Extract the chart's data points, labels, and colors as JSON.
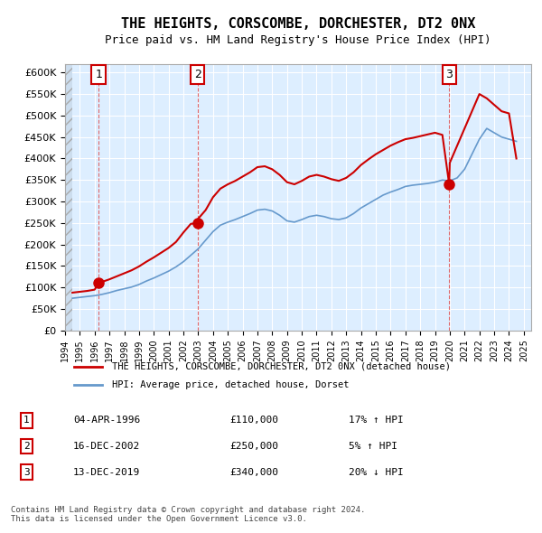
{
  "title": "THE HEIGHTS, CORSCOMBE, DORCHESTER, DT2 0NX",
  "subtitle": "Price paid vs. HM Land Registry's House Price Index (HPI)",
  "ylabel": "",
  "ylim": [
    0,
    620000
  ],
  "yticks": [
    0,
    50000,
    100000,
    150000,
    200000,
    250000,
    300000,
    350000,
    400000,
    450000,
    500000,
    550000,
    600000
  ],
  "xlim_start": 1994.0,
  "xlim_end": 2025.5,
  "background_color": "#ffffff",
  "plot_bg_color": "#ddeeff",
  "hatch_color": "#cccccc",
  "grid_color": "#ffffff",
  "red_line_color": "#cc0000",
  "blue_line_color": "#6699cc",
  "sale_marker_color": "#cc0000",
  "sale_marker_size": 8,
  "vline_color": "#dd4444",
  "vline_style": "--",
  "annotation_box_color": "#cc0000",
  "transactions": [
    {
      "label": "1",
      "date_num": 1996.27,
      "price": 110000,
      "date_str": "04-APR-1996",
      "pct": "17%",
      "direction": "↑"
    },
    {
      "label": "2",
      "date_num": 2002.96,
      "price": 250000,
      "date_str": "16-DEC-2002",
      "pct": "5%",
      "direction": "↑"
    },
    {
      "label": "3",
      "date_num": 2019.96,
      "price": 340000,
      "date_str": "13-DEC-2019",
      "pct": "20%",
      "direction": "↓"
    }
  ],
  "legend_label_red": "THE HEIGHTS, CORSCOMBE, DORCHESTER, DT2 0NX (detached house)",
  "legend_label_blue": "HPI: Average price, detached house, Dorset",
  "footer": "Contains HM Land Registry data © Crown copyright and database right 2024.\nThis data is licensed under the Open Government Licence v3.0.",
  "hpi_data": {
    "years": [
      1994.5,
      1995.0,
      1995.5,
      1996.0,
      1996.5,
      1997.0,
      1997.5,
      1998.0,
      1998.5,
      1999.0,
      1999.5,
      2000.0,
      2000.5,
      2001.0,
      2001.5,
      2002.0,
      2002.5,
      2003.0,
      2003.5,
      2004.0,
      2004.5,
      2005.0,
      2005.5,
      2006.0,
      2006.5,
      2007.0,
      2007.5,
      2008.0,
      2008.5,
      2009.0,
      2009.5,
      2010.0,
      2010.5,
      2011.0,
      2011.5,
      2012.0,
      2012.5,
      2013.0,
      2013.5,
      2014.0,
      2014.5,
      2015.0,
      2015.5,
      2016.0,
      2016.5,
      2017.0,
      2017.5,
      2018.0,
      2018.5,
      2019.0,
      2019.5,
      2020.0,
      2020.5,
      2021.0,
      2021.5,
      2022.0,
      2022.5,
      2023.0,
      2023.5,
      2024.0,
      2024.5
    ],
    "values": [
      75000,
      77000,
      79000,
      81000,
      84000,
      88000,
      93000,
      97000,
      101000,
      107000,
      115000,
      122000,
      130000,
      138000,
      148000,
      160000,
      175000,
      190000,
      210000,
      230000,
      245000,
      252000,
      258000,
      265000,
      272000,
      280000,
      282000,
      278000,
      268000,
      255000,
      252000,
      258000,
      265000,
      268000,
      265000,
      260000,
      258000,
      262000,
      272000,
      285000,
      295000,
      305000,
      315000,
      322000,
      328000,
      335000,
      338000,
      340000,
      342000,
      345000,
      350000,
      348000,
      355000,
      375000,
      410000,
      445000,
      470000,
      460000,
      450000,
      445000,
      440000
    ]
  },
  "price_line_data": {
    "years": [
      1994.5,
      1995.0,
      1995.5,
      1996.0,
      1996.27,
      1996.5,
      1997.0,
      1997.5,
      1998.0,
      1998.5,
      1999.0,
      1999.5,
      2000.0,
      2000.5,
      2001.0,
      2001.5,
      2002.0,
      2002.5,
      2002.96,
      2003.0,
      2003.5,
      2004.0,
      2004.5,
      2005.0,
      2005.5,
      2006.0,
      2006.5,
      2007.0,
      2007.5,
      2008.0,
      2008.5,
      2009.0,
      2009.5,
      2010.0,
      2010.5,
      2011.0,
      2011.5,
      2012.0,
      2012.5,
      2013.0,
      2013.5,
      2014.0,
      2014.5,
      2015.0,
      2015.5,
      2016.0,
      2016.5,
      2017.0,
      2017.5,
      2018.0,
      2018.5,
      2019.0,
      2019.5,
      2019.96,
      2020.0,
      2020.5,
      2021.0,
      2021.5,
      2022.0,
      2022.5,
      2023.0,
      2023.5,
      2024.0,
      2024.5
    ],
    "values": [
      88000,
      90000,
      92000,
      95000,
      110000,
      113000,
      119000,
      126000,
      133000,
      140000,
      149000,
      160000,
      170000,
      181000,
      192000,
      206000,
      228000,
      248000,
      250000,
      260000,
      280000,
      310000,
      330000,
      340000,
      348000,
      358000,
      368000,
      380000,
      382000,
      375000,
      362000,
      345000,
      340000,
      348000,
      358000,
      362000,
      358000,
      352000,
      348000,
      355000,
      368000,
      385000,
      398000,
      410000,
      420000,
      430000,
      438000,
      445000,
      448000,
      452000,
      456000,
      460000,
      455000,
      340000,
      390000,
      430000,
      470000,
      510000,
      550000,
      540000,
      525000,
      510000,
      505000,
      400000
    ]
  }
}
